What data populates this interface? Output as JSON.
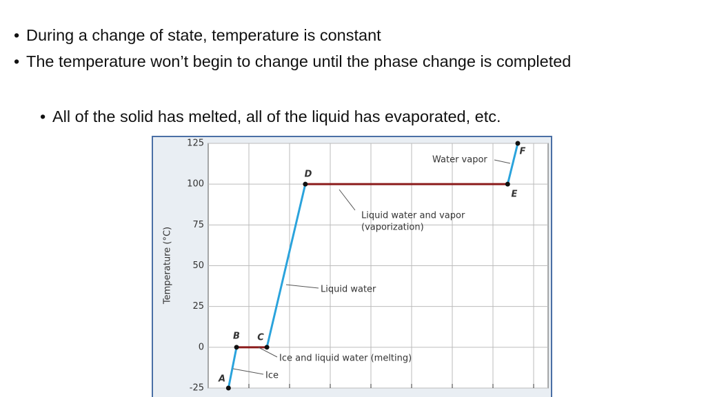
{
  "bullets": [
    "During a change of state, temperature is constant",
    "The temperature won’t begin to change until the phase change is completed"
  ],
  "sub_bullets": [
    "All of the solid has melted, all of the liquid has evaporated, etc."
  ],
  "chart_data": {
    "type": "line",
    "y_label": "Temperature (°C)",
    "x": [
      0.5,
      0.7,
      1.45,
      2.4,
      7.4,
      7.65
    ],
    "values": [
      -25,
      0,
      0,
      100,
      100,
      125
    ],
    "point_labels": [
      "A",
      "B",
      "C",
      "D",
      "E",
      "F"
    ],
    "segment_colors": [
      "#2aa3dc",
      "#8b1a1a",
      "#2aa3dc",
      "#8b1a1a",
      "#2aa3dc"
    ],
    "xlim": [
      0,
      8.4
    ],
    "ylim": [
      -25,
      125
    ],
    "yticks": [
      -25,
      0,
      25,
      50,
      75,
      100,
      125
    ],
    "grid": true,
    "annotations": [
      "Water vapor",
      "Liquid water and vapor",
      "(vaporization)",
      "Liquid water",
      "Ice and liquid water (melting)",
      "Ice"
    ]
  }
}
